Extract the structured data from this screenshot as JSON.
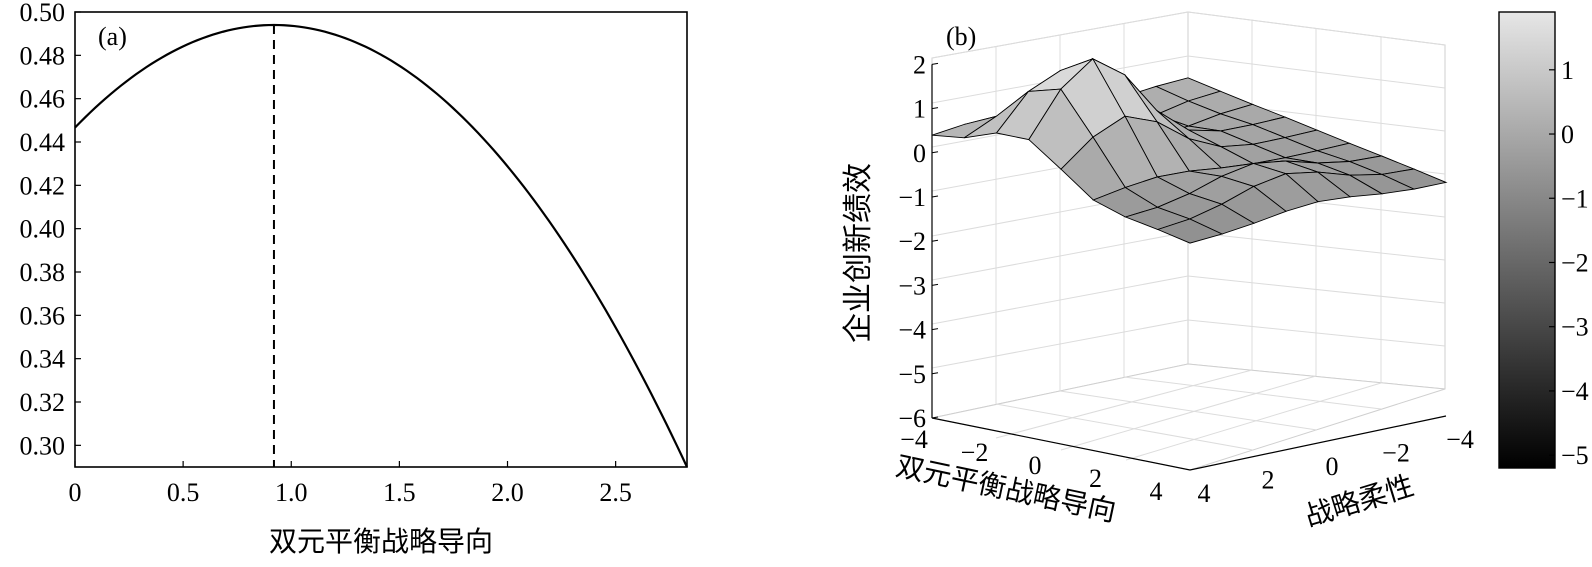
{
  "chart_data": [
    {
      "panel": "(a)",
      "type": "line",
      "xlabel": "双元平衡战略导向",
      "ylabel": "",
      "xlim": [
        0,
        2.83
      ],
      "ylim": [
        0.29,
        0.5
      ],
      "xticks": [
        0,
        0.5,
        1.0,
        1.5,
        2.0,
        2.5
      ],
      "xtick_labels": [
        "0",
        "0.5",
        "1.0",
        "1.5",
        "2.0",
        "2.5"
      ],
      "yticks": [
        0.3,
        0.32,
        0.34,
        0.36,
        0.38,
        0.4,
        0.42,
        0.44,
        0.46,
        0.48,
        0.5
      ],
      "ytick_labels": [
        "0.30",
        "0.32",
        "0.34",
        "0.36",
        "0.38",
        "0.40",
        "0.42",
        "0.44",
        "0.46",
        "0.48",
        "0.50"
      ],
      "curve": {
        "x0": 0.0,
        "y0": 0.452,
        "x_peak": 0.92,
        "y_peak": 0.494,
        "x_end": 2.83,
        "y_end": 0.29
      },
      "vline_x": 0.92,
      "grid": false
    },
    {
      "panel": "(b)",
      "type": "surface",
      "xlabel": "双元平衡战略导向",
      "ylabel": "战略柔性",
      "zlabel": "企业创新绩效",
      "xlim": [
        -4,
        4
      ],
      "ylim": [
        -4,
        4
      ],
      "zlim": [
        -6,
        2
      ],
      "xtick_labels": [
        "−4",
        "−2",
        "0",
        "2",
        "4"
      ],
      "ytick_labels": [
        "4",
        "2",
        "0",
        "−2",
        "−4"
      ],
      "ztick_labels": [
        "2",
        "1",
        "0",
        "−1",
        "−2",
        "−3",
        "−4",
        "−5",
        "−6"
      ],
      "colorbar_ticks": [
        "1",
        "0",
        "−1",
        "−2",
        "−3",
        "−4",
        "−5"
      ],
      "colorbar_range": [
        -5.2,
        1.9
      ],
      "grid": true
    }
  ]
}
